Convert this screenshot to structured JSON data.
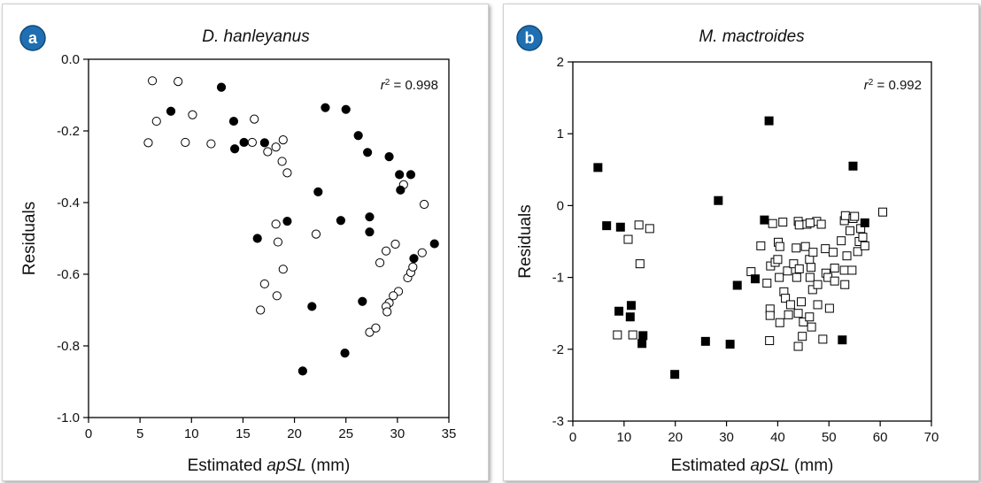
{
  "chart_data": [
    {
      "type": "scatter",
      "panel_label": "a",
      "title": "D. hanleyanus",
      "xlabel_prefix": "Estimated ",
      "xlabel_italic": "apSL",
      "xlabel_suffix": " (mm)",
      "ylabel": "Residuals",
      "xlim": [
        0,
        35
      ],
      "ylim": [
        -1.0,
        0.0
      ],
      "xticks": [
        0,
        5,
        10,
        15,
        20,
        25,
        30,
        35
      ],
      "yticks": [
        0.0,
        -0.2,
        -0.4,
        -0.6,
        -0.8,
        -1.0
      ],
      "xtick_labels": [
        "0",
        "5",
        "10",
        "15",
        "20",
        "25",
        "30",
        "35"
      ],
      "ytick_labels": [
        "0.0",
        "-0.2",
        "-0.4",
        "-0.6",
        "-0.8",
        "-1.0"
      ],
      "r2_symbol": "r",
      "r2_value": "= 0.998",
      "marker": "circle",
      "series": [
        {
          "fill": "#000000",
          "points": [
            [
              8,
              -0.145
            ],
            [
              12.9,
              -0.078
            ],
            [
              14.1,
              -0.173
            ],
            [
              14.2,
              -0.25
            ],
            [
              15.1,
              -0.232
            ],
            [
              17.1,
              -0.233
            ],
            [
              16.4,
              -0.5
            ],
            [
              19.3,
              -0.452
            ],
            [
              21.7,
              -0.69
            ],
            [
              20.8,
              -0.87
            ],
            [
              22.3,
              -0.37
            ],
            [
              23.0,
              -0.135
            ],
            [
              25.0,
              -0.14
            ],
            [
              24.5,
              -0.45
            ],
            [
              24.9,
              -0.82
            ],
            [
              26.2,
              -0.213
            ],
            [
              27.1,
              -0.26
            ],
            [
              27.3,
              -0.44
            ],
            [
              27.3,
              -0.482
            ],
            [
              26.6,
              -0.676
            ],
            [
              29.2,
              -0.272
            ],
            [
              30.2,
              -0.322
            ],
            [
              30.3,
              -0.365
            ],
            [
              31.3,
              -0.322
            ],
            [
              31.6,
              -0.556
            ],
            [
              33.6,
              -0.515
            ]
          ]
        },
        {
          "fill": "#ffffff",
          "points": [
            [
              6.2,
              -0.06
            ],
            [
              8.7,
              -0.062
            ],
            [
              6.6,
              -0.173
            ],
            [
              10.1,
              -0.155
            ],
            [
              5.8,
              -0.233
            ],
            [
              9.4,
              -0.232
            ],
            [
              11.9,
              -0.236
            ],
            [
              15.9,
              -0.232
            ],
            [
              16.1,
              -0.167
            ],
            [
              17.4,
              -0.258
            ],
            [
              18.2,
              -0.245
            ],
            [
              18.9,
              -0.225
            ],
            [
              18.8,
              -0.285
            ],
            [
              19.3,
              -0.317
            ],
            [
              18.2,
              -0.46
            ],
            [
              18.4,
              -0.51
            ],
            [
              18.9,
              -0.586
            ],
            [
              17.1,
              -0.627
            ],
            [
              18.3,
              -0.66
            ],
            [
              16.7,
              -0.7
            ],
            [
              22.1,
              -0.488
            ],
            [
              28.3,
              -0.568
            ],
            [
              28.9,
              -0.535
            ],
            [
              29.8,
              -0.516
            ],
            [
              30.6,
              -0.35
            ],
            [
              32.6,
              -0.405
            ],
            [
              32.4,
              -0.54
            ],
            [
              31.0,
              -0.61
            ],
            [
              31.3,
              -0.595
            ],
            [
              31.5,
              -0.58
            ],
            [
              30.1,
              -0.648
            ],
            [
              29.6,
              -0.66
            ],
            [
              29.2,
              -0.68
            ],
            [
              28.9,
              -0.69
            ],
            [
              29.0,
              -0.705
            ],
            [
              27.3,
              -0.762
            ],
            [
              27.9,
              -0.75
            ]
          ]
        }
      ]
    },
    {
      "type": "scatter",
      "panel_label": "b",
      "title": "M. mactroides",
      "xlabel_prefix": "Estimated ",
      "xlabel_italic": "apSL",
      "xlabel_suffix": " (mm)",
      "ylabel": "Residuals",
      "xlim": [
        0,
        70
      ],
      "ylim": [
        -3,
        2
      ],
      "xticks": [
        0,
        10,
        20,
        30,
        40,
        50,
        60,
        70
      ],
      "yticks": [
        2,
        1,
        0,
        -1,
        -2,
        -3
      ],
      "xtick_labels": [
        "0",
        "10",
        "20",
        "30",
        "40",
        "50",
        "60",
        "70"
      ],
      "ytick_labels": [
        "2",
        "1",
        "0",
        "-1",
        "-2",
        "-3"
      ],
      "r2_symbol": "r",
      "r2_value": "= 0.992",
      "marker": "square",
      "series": [
        {
          "fill": "#000000",
          "points": [
            [
              4.9,
              0.53
            ],
            [
              6.6,
              -0.28
            ],
            [
              9.3,
              -0.3
            ],
            [
              9.0,
              -1.47
            ],
            [
              11.4,
              -1.39
            ],
            [
              11.2,
              -1.55
            ],
            [
              13.5,
              -1.92
            ],
            [
              13.7,
              -1.81
            ],
            [
              19.9,
              -2.35
            ],
            [
              25.9,
              -1.89
            ],
            [
              28.4,
              0.07
            ],
            [
              30.7,
              -1.93
            ],
            [
              32.1,
              -1.11
            ],
            [
              35.6,
              -1.02
            ],
            [
              37.4,
              -0.2
            ],
            [
              38.3,
              1.18
            ],
            [
              52.6,
              -1.87
            ],
            [
              54.7,
              0.55
            ],
            [
              57.0,
              -0.24
            ]
          ]
        },
        {
          "fill": "#ffffff",
          "points": [
            [
              10.8,
              -0.47
            ],
            [
              12.9,
              -0.27
            ],
            [
              15.0,
              -0.32
            ],
            [
              13.1,
              -0.81
            ],
            [
              8.7,
              -1.8
            ],
            [
              11.7,
              -1.8
            ],
            [
              36.7,
              -0.56
            ],
            [
              34.8,
              -0.92
            ],
            [
              37.9,
              -1.08
            ],
            [
              38.5,
              -1.44
            ],
            [
              38.5,
              -1.53
            ],
            [
              38.6,
              -0.84
            ],
            [
              38.4,
              -1.88
            ],
            [
              39.5,
              -0.79
            ],
            [
              40.1,
              -0.51
            ],
            [
              40.4,
              -0.57
            ],
            [
              40.0,
              -0.75
            ],
            [
              40.3,
              -1.0
            ],
            [
              41.2,
              -1.2
            ],
            [
              40.4,
              -1.63
            ],
            [
              41.9,
              -0.91
            ],
            [
              41.5,
              -1.29
            ],
            [
              42.5,
              -1.38
            ],
            [
              42.1,
              -1.52
            ],
            [
              43.1,
              -0.81
            ],
            [
              44.0,
              -0.22
            ],
            [
              44.2,
              -0.27
            ],
            [
              43.6,
              -0.59
            ],
            [
              44.2,
              -0.88
            ],
            [
              44.6,
              -1.34
            ],
            [
              44.0,
              -1.5
            ],
            [
              44.0,
              -1.96
            ],
            [
              44.8,
              -1.82
            ],
            [
              45.0,
              -1.62
            ],
            [
              45.7,
              -0.26
            ],
            [
              45.4,
              -0.57
            ],
            [
              46.2,
              -0.75
            ],
            [
              46.5,
              -0.86
            ],
            [
              46.9,
              -0.65
            ],
            [
              46.8,
              -1.17
            ],
            [
              46.3,
              -1.0
            ],
            [
              46.2,
              -1.55
            ],
            [
              46.6,
              -1.69
            ],
            [
              47.6,
              -0.22
            ],
            [
              47.8,
              -1.1
            ],
            [
              47.8,
              -1.38
            ],
            [
              48.5,
              -0.26
            ],
            [
              49.3,
              -0.6
            ],
            [
              49.4,
              -0.94
            ],
            [
              49.8,
              -1.0
            ],
            [
              50.1,
              -1.43
            ],
            [
              50.8,
              -0.65
            ],
            [
              51.1,
              -0.87
            ],
            [
              51.1,
              -1.05
            ],
            [
              52.4,
              -0.49
            ],
            [
              53.0,
              -0.21
            ],
            [
              53.2,
              -0.14
            ],
            [
              53.1,
              -1.1
            ],
            [
              53.0,
              -0.9
            ],
            [
              53.5,
              -0.7
            ],
            [
              54.1,
              -0.35
            ],
            [
              54.7,
              -0.18
            ],
            [
              54.5,
              -0.9
            ],
            [
              55.6,
              -0.64
            ],
            [
              55.9,
              -0.5
            ],
            [
              56.2,
              -0.32
            ],
            [
              56.6,
              -0.44
            ],
            [
              57.0,
              -0.56
            ],
            [
              55.0,
              -0.15
            ],
            [
              48.8,
              -1.86
            ],
            [
              60.5,
              -0.09
            ],
            [
              46.3,
              -0.24
            ],
            [
              41.0,
              -0.23
            ],
            [
              39.0,
              -0.25
            ],
            [
              43.7,
              -1.0
            ]
          ]
        }
      ]
    }
  ]
}
